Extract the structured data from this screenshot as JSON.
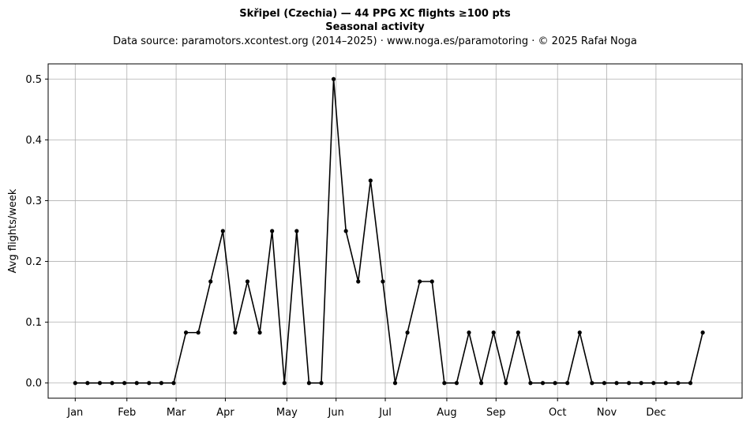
{
  "chart_data": {
    "type": "line",
    "title": "Skřipel (Czechia)  —  44 PPG XC flights ≥100 pts",
    "subtitle": "Seasonal activity",
    "source_line": "Data source: paramotors.xcontest.org (2014–2025)  ·  www.noga.es/paramotoring  ·  © 2025 Rafał Noga",
    "ylabel": "Avg flights/week",
    "xlabel": "",
    "grid": true,
    "ylim": [
      -0.025,
      0.525
    ],
    "xlim": [
      -2.2,
      54.2
    ],
    "yticks": [
      0.0,
      0.1,
      0.2,
      0.3,
      0.4,
      0.5
    ],
    "ytick_labels": [
      "0.0",
      "0.1",
      "0.2",
      "0.3",
      "0.4",
      "0.5"
    ],
    "xticks": [
      0,
      4.2,
      8.2,
      12.2,
      17.2,
      21.2,
      25.2,
      30.2,
      34.2,
      39.2,
      43.2,
      47.2
    ],
    "xtick_labels": [
      "Jan",
      "Feb",
      "Mar",
      "Apr",
      "May",
      "Jun",
      "Jul",
      "Aug",
      "Sep",
      "Oct",
      "Nov",
      "Dec"
    ],
    "series": [
      {
        "color": "#000000",
        "x": [
          0,
          1,
          2,
          3,
          4,
          5,
          6,
          7,
          8,
          9,
          10,
          11,
          12,
          13,
          14,
          15,
          16,
          17,
          18,
          19,
          20,
          21,
          22,
          23,
          24,
          25,
          26,
          27,
          28,
          29,
          30,
          31,
          32,
          33,
          34,
          35,
          36,
          37,
          38,
          39,
          40,
          41,
          42,
          43,
          44,
          45,
          46,
          47,
          48,
          49,
          50,
          51
        ],
        "values": [
          0,
          0,
          0,
          0,
          0,
          0,
          0,
          0,
          0,
          0.083,
          0.083,
          0.167,
          0.25,
          0.083,
          0.167,
          0.083,
          0.25,
          0,
          0.25,
          0,
          0,
          0.5,
          0.25,
          0.167,
          0.333,
          0.167,
          0,
          0.083,
          0.167,
          0.167,
          0,
          0,
          0.083,
          0,
          0.083,
          0,
          0.083,
          0,
          0,
          0,
          0,
          0.083,
          0,
          0,
          0,
          0,
          0,
          0,
          0,
          0,
          0,
          0.083
        ]
      }
    ]
  }
}
